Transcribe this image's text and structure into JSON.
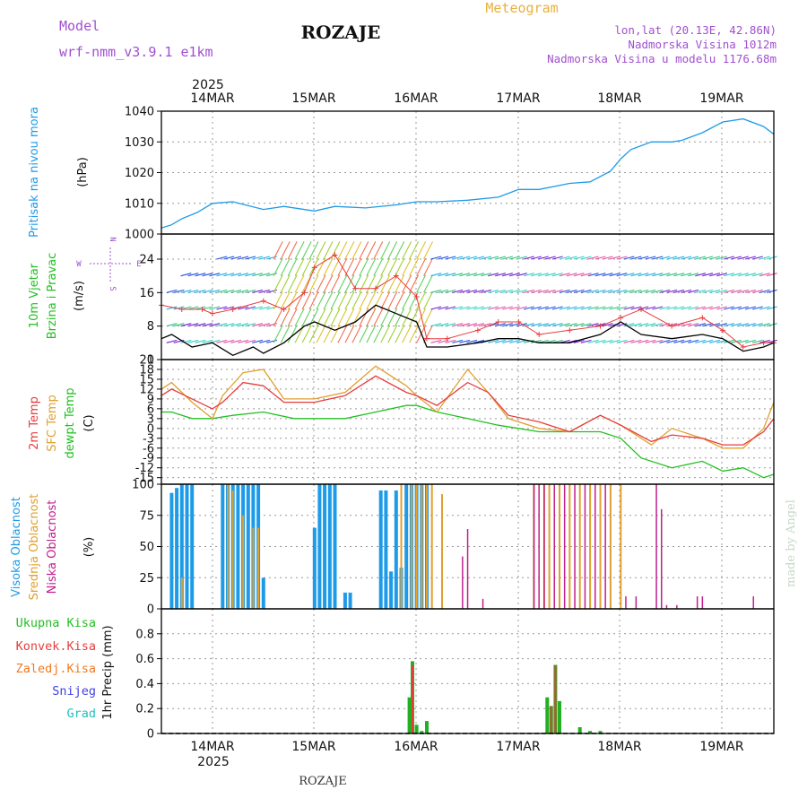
{
  "header": {
    "model_label": "Model",
    "model_name": "wrf-nmm_v3.9.1 e1km",
    "station": "ROZAJE",
    "meteogram_label": "Meteogram",
    "lonlat": "lon,lat (20.13E, 42.86N)",
    "altitude": "Nadmorska Visina 1012m",
    "model_altitude": "Nadmorska Visina u modelu 1176.68m"
  },
  "footer": {
    "station": "ROZAJE",
    "credit": "made by Angel"
  },
  "colors": {
    "pressure": "#1e9be8",
    "temp2m": "#e83c3c",
    "sfc": "#e0a030",
    "dew": "#22c022",
    "high_cloud": "#1e9be8",
    "mid_cloud": "#e0a030",
    "low_cloud": "#c0208c",
    "total_precip": "#22b022",
    "conv_precip": "#e83c3c",
    "frozen_precip": "#f07a22",
    "snow": "#4040e0",
    "hail": "#22c0c0",
    "wind_speed": "#000000",
    "gust": "#e83c3c"
  },
  "time_axis": {
    "year": "2025",
    "days": [
      "14MAR",
      "15MAR",
      "16MAR",
      "17MAR",
      "18MAR",
      "19MAR"
    ]
  },
  "panels": {
    "pressure": {
      "title": "Pritisak na nivou mora",
      "unit": "(hPa)"
    },
    "wind": {
      "title_1": "10m Vjetar",
      "title_2": "Brzina i Pravac",
      "unit": "(m/s)",
      "compass_n": "N",
      "compass_w": "W",
      "compass_e": "E",
      "compass_s": "S"
    },
    "temp": {
      "title_1": "2m Temp",
      "title_2": "SFC Temp",
      "title_3": "dewpt Temp",
      "unit": "(C)"
    },
    "cloud": {
      "title_1": "Visoka Oblacnost",
      "title_2": "Srednja Oblacnost",
      "title_3": "Niska Oblacnost",
      "unit": "(%)"
    },
    "precip": {
      "unit": "1hr Precip (mm)",
      "legend": [
        "Ukupna Kisa",
        "Konvek.Kisa",
        "Zaledj.Kisa",
        "Snijeg",
        "Grad"
      ]
    }
  },
  "chart_data": [
    {
      "type": "line",
      "name": "pressure",
      "x_unit": "days from 14MAR 00Z",
      "ylim": [
        1000,
        1040
      ],
      "yticks": [
        1000,
        1010,
        1020,
        1030,
        1040
      ],
      "series": [
        {
          "x": [
            -0.5,
            -0.4,
            -0.3,
            -0.15,
            0,
            0.2,
            0.5,
            0.7,
            1,
            1.2,
            1.5,
            1.8,
            2,
            2.2,
            2.5,
            2.8,
            3,
            3.2,
            3.5,
            3.7,
            3.9,
            4,
            4.1,
            4.3,
            4.5,
            4.6,
            4.8,
            5,
            5.2,
            5.4,
            5.5
          ],
          "y": [
            1002,
            1003,
            1005,
            1007,
            1010,
            1010.5,
            1008,
            1009,
            1007.5,
            1009,
            1008.5,
            1009.5,
            1010.5,
            1010.5,
            1011,
            1012,
            1014.5,
            1014.5,
            1016.5,
            1017,
            1020.5,
            1024.5,
            1027.5,
            1030,
            1030,
            1030.5,
            1033,
            1036.5,
            1037.5,
            1035,
            1032.5
          ]
        }
      ]
    },
    {
      "type": "line",
      "name": "wind",
      "ylim": [
        0,
        30
      ],
      "yticks": [
        0,
        8,
        16,
        24
      ],
      "series": [
        {
          "name": "speed",
          "x": [
            -0.5,
            -0.4,
            -0.2,
            0,
            0.2,
            0.4,
            0.5,
            0.7,
            0.9,
            1,
            1.2,
            1.4,
            1.6,
            1.8,
            2,
            2.1,
            2.3,
            2.6,
            2.8,
            3,
            3.2,
            3.5,
            3.8,
            4,
            4.2,
            4.5,
            4.8,
            5,
            5.2,
            5.4,
            5.5
          ],
          "y": [
            5,
            6,
            3,
            4,
            1,
            3,
            1.5,
            4,
            8,
            9,
            7,
            9,
            13,
            11,
            9,
            3,
            3,
            4,
            5,
            5,
            4,
            4,
            6,
            9,
            6,
            5,
            6,
            5,
            2,
            3,
            4
          ]
        },
        {
          "name": "gust",
          "x": [
            -0.5,
            -0.3,
            -0.1,
            0,
            0.2,
            0.5,
            0.7,
            0.9,
            1,
            1.2,
            1.4,
            1.6,
            1.8,
            2,
            2.1,
            2.3,
            2.6,
            2.8,
            3,
            3.2,
            3.5,
            3.8,
            4,
            4.2,
            4.5,
            4.8,
            5,
            5.2,
            5.4,
            5.5
          ],
          "y": [
            13,
            12,
            12,
            11,
            12,
            14,
            12,
            16,
            22,
            25,
            17,
            17,
            20,
            15,
            5,
            5,
            7,
            9,
            9,
            6,
            7,
            8,
            10,
            12,
            8,
            10,
            7,
            3,
            4,
            4
          ]
        }
      ]
    },
    {
      "type": "line",
      "name": "temperature",
      "ylim": [
        -17,
        21
      ],
      "yticks": [
        -15,
        -12,
        -9,
        -6,
        -3,
        0,
        3,
        6,
        9,
        12,
        15,
        18,
        21
      ],
      "series": [
        {
          "name": "t2m",
          "x": [
            -0.5,
            -0.4,
            -0.2,
            0,
            0.1,
            0.3,
            0.5,
            0.7,
            1,
            1.3,
            1.6,
            1.9,
            2,
            2.2,
            2.5,
            2.7,
            2.9,
            3.2,
            3.5,
            3.8,
            4,
            4.3,
            4.5,
            4.8,
            5,
            5.2,
            5.4,
            5.5
          ],
          "y": [
            10,
            12,
            9,
            6,
            8,
            14,
            13,
            8,
            8,
            10,
            16,
            11,
            10,
            7,
            14,
            11,
            4,
            2,
            -1,
            4,
            1,
            -4,
            -2,
            -3,
            -5,
            -5,
            -1,
            3
          ]
        },
        {
          "name": "sfc",
          "x": [
            -0.5,
            -0.4,
            -0.2,
            0,
            0.1,
            0.3,
            0.5,
            0.7,
            1,
            1.3,
            1.6,
            1.9,
            2,
            2.2,
            2.5,
            2.7,
            2.9,
            3.2,
            3.5,
            3.8,
            4,
            4.3,
            4.5,
            4.8,
            5,
            5.2,
            5.4,
            5.5
          ],
          "y": [
            12,
            14,
            8,
            3,
            10,
            17,
            18,
            9,
            9,
            11,
            19,
            13,
            10,
            5,
            18,
            11,
            3,
            0,
            -1,
            4,
            1,
            -5,
            0,
            -3,
            -6,
            -6,
            0,
            8
          ]
        },
        {
          "name": "dew",
          "x": [
            -0.5,
            -0.4,
            -0.2,
            0,
            0.2,
            0.5,
            0.8,
            1,
            1.3,
            1.6,
            1.9,
            2,
            2.2,
            2.5,
            2.8,
            3,
            3.2,
            3.5,
            3.8,
            4,
            4.2,
            4.5,
            4.8,
            5,
            5.2,
            5.4,
            5.5
          ],
          "y": [
            5,
            5,
            3,
            3,
            4,
            5,
            3,
            3,
            3,
            5,
            7,
            7,
            5,
            3,
            1,
            0,
            -1,
            -1,
            -1,
            -3,
            -9,
            -12,
            -10,
            -13,
            -12,
            -15,
            -14
          ]
        }
      ]
    },
    {
      "type": "bar",
      "name": "cloud",
      "ylim": [
        0,
        100
      ],
      "yticks": [
        0,
        25,
        50,
        75,
        100
      ],
      "series": [
        {
          "name": "high",
          "x": [
            -0.4,
            -0.35,
            -0.3,
            -0.25,
            -0.2,
            0.1,
            0.15,
            0.2,
            0.25,
            0.3,
            0.35,
            0.4,
            0.45,
            0.5,
            1.0,
            1.05,
            1.1,
            1.15,
            1.2,
            1.3,
            1.35,
            1.65,
            1.7,
            1.75,
            1.8,
            1.85,
            1.9,
            1.95,
            2.0,
            2.05,
            2.1
          ],
          "y": [
            93,
            97,
            100,
            100,
            100,
            100,
            100,
            100,
            100,
            100,
            100,
            100,
            100,
            25,
            65,
            100,
            100,
            100,
            100,
            13,
            13,
            95,
            95,
            30,
            95,
            33,
            100,
            100,
            100,
            100,
            100
          ]
        },
        {
          "name": "mid",
          "x": [
            -0.3,
            0.15,
            0.2,
            0.3,
            0.4,
            0.45,
            1.85,
            1.95,
            2.0,
            2.05,
            2.1,
            2.15,
            2.25,
            3.15,
            3.25,
            3.3,
            3.4,
            3.5,
            3.6,
            3.7,
            3.8,
            3.9,
            4.0
          ],
          "y": [
            25,
            100,
            95,
            75,
            65,
            65,
            100,
            100,
            100,
            100,
            100,
            100,
            92,
            100,
            100,
            100,
            100,
            100,
            100,
            100,
            100,
            100,
            100
          ]
        },
        {
          "name": "low",
          "x": [
            2.45,
            2.5,
            2.65,
            3.15,
            3.2,
            3.25,
            3.35,
            3.45,
            3.55,
            3.65,
            3.75,
            3.85,
            4.05,
            4.15,
            4.35,
            4.4,
            4.45,
            4.55,
            4.75,
            4.8,
            5.3
          ],
          "y": [
            42,
            64,
            8,
            100,
            100,
            100,
            100,
            100,
            100,
            100,
            100,
            100,
            10,
            10,
            100,
            80,
            3,
            3,
            10,
            10,
            10
          ]
        }
      ]
    },
    {
      "type": "bar",
      "name": "precip",
      "ylim": [
        0,
        1
      ],
      "yticks": [
        0,
        0.2,
        0.4,
        0.6,
        0.8
      ],
      "series": [
        {
          "name": "total",
          "x": [
            1.93,
            1.96,
            2.0,
            2.05,
            2.1,
            3.28,
            3.32,
            3.36,
            3.4,
            3.6,
            3.7,
            3.8
          ],
          "y": [
            0.29,
            0.58,
            0.07,
            0.02,
            0.1,
            0.29,
            0.22,
            0.55,
            0.26,
            0.05,
            0.02,
            0.02
          ]
        },
        {
          "name": "convective",
          "x": [
            1.96,
            3.32,
            3.36
          ],
          "y": [
            0.55,
            0.22,
            0.54
          ]
        }
      ]
    }
  ]
}
